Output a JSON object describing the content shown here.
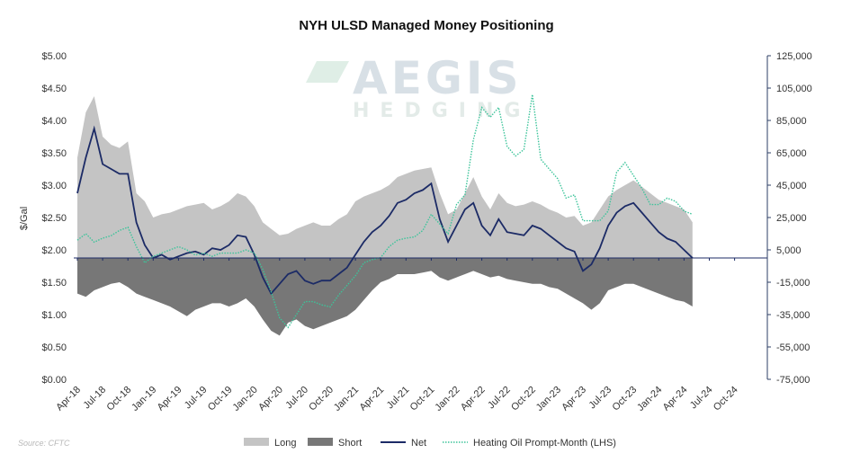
{
  "chart_data": {
    "type": "area",
    "title": "NYH ULSD Managed Money Positioning",
    "ylabel": "$/Gal",
    "source": "Source: CFTC",
    "watermark": {
      "line1": "AEGIS",
      "line2": "HEDGING"
    },
    "left_axis": {
      "ylim": [
        0,
        5
      ],
      "ticks": [
        "$5.00",
        "$4.50",
        "$4.00",
        "$3.50",
        "$3.00",
        "$2.50",
        "$2.00",
        "$1.50",
        "$1.00",
        "$0.50",
        "$0.00"
      ]
    },
    "right_axis": {
      "ylim": [
        -75000,
        125000
      ],
      "ticks": [
        "125,000",
        "105,000",
        "85,000",
        "65,000",
        "45,000",
        "25,000",
        "5,000",
        "-15,000",
        "-35,000",
        "-55,000",
        "-75,000"
      ]
    },
    "x_tick_labels": [
      "Apr-18",
      "Jul-18",
      "Oct-18",
      "Jan-19",
      "Apr-19",
      "Jul-19",
      "Oct-19",
      "Jan-20",
      "Apr-20",
      "Jul-20",
      "Oct-20",
      "Jan-21",
      "Apr-21",
      "Jul-21",
      "Oct-21",
      "Jan-22",
      "Apr-22",
      "Jul-22",
      "Oct-22",
      "Jan-23",
      "Apr-23",
      "Jul-23",
      "Oct-23",
      "Jan-24",
      "Apr-24",
      "Jul-24",
      "Oct-24"
    ],
    "grid": false,
    "legend_position": "bottom",
    "colors": {
      "long": "#c4c4c4",
      "short": "#777777",
      "net": "#1c2b66",
      "heating_oil": "#3cc49a",
      "zero_line": "#1c2b66",
      "right_axis_line": "#2e3f66"
    },
    "series": [
      {
        "name": "Long",
        "axis": "right",
        "style": "area",
        "x": [
          "Apr-18",
          "May-18",
          "Jun-18",
          "Jul-18",
          "Aug-18",
          "Sep-18",
          "Oct-18",
          "Nov-18",
          "Dec-18",
          "Jan-19",
          "Feb-19",
          "Mar-19",
          "Apr-19",
          "May-19",
          "Jun-19",
          "Jul-19",
          "Aug-19",
          "Sep-19",
          "Oct-19",
          "Nov-19",
          "Dec-19",
          "Jan-20",
          "Feb-20",
          "Mar-20",
          "Apr-20",
          "May-20",
          "Jun-20",
          "Jul-20",
          "Aug-20",
          "Sep-20",
          "Oct-20",
          "Nov-20",
          "Dec-20",
          "Jan-21",
          "Feb-21",
          "Mar-21",
          "Apr-21",
          "May-21",
          "Jun-21",
          "Jul-21",
          "Aug-21",
          "Sep-21",
          "Oct-21",
          "Nov-21",
          "Dec-21",
          "Jan-22",
          "Feb-22",
          "Mar-22",
          "Apr-22",
          "May-22",
          "Jun-22",
          "Jul-22",
          "Aug-22",
          "Sep-22",
          "Oct-22",
          "Nov-22",
          "Dec-22",
          "Jan-23",
          "Feb-23",
          "Mar-23",
          "Apr-23",
          "May-23",
          "Jun-23",
          "Jul-23",
          "Aug-23",
          "Sep-23",
          "Oct-23",
          "Nov-23",
          "Dec-23",
          "Jan-24",
          "Feb-24",
          "Mar-24",
          "Apr-24",
          "May-24"
        ],
        "values": [
          62000,
          90000,
          100000,
          75000,
          70000,
          68000,
          72000,
          40000,
          35000,
          25000,
          27000,
          28000,
          30000,
          32000,
          33000,
          34000,
          30000,
          32000,
          35000,
          40000,
          38000,
          32000,
          22000,
          18000,
          14000,
          15000,
          18000,
          20000,
          22000,
          20000,
          20000,
          24000,
          27000,
          35000,
          38000,
          40000,
          42000,
          45000,
          50000,
          52000,
          54000,
          55000,
          56000,
          40000,
          27000,
          30000,
          40000,
          50000,
          38000,
          30000,
          40000,
          34000,
          32000,
          33000,
          35000,
          33000,
          30000,
          28000,
          25000,
          26000,
          20000,
          22000,
          30000,
          38000,
          42000,
          45000,
          48000,
          44000,
          40000,
          36000,
          34000,
          32000,
          30000,
          22000
        ]
      },
      {
        "name": "Short",
        "axis": "right",
        "style": "area",
        "x": [
          "Apr-18",
          "May-18",
          "Jun-18",
          "Jul-18",
          "Aug-18",
          "Sep-18",
          "Oct-18",
          "Nov-18",
          "Dec-18",
          "Jan-19",
          "Feb-19",
          "Mar-19",
          "Apr-19",
          "May-19",
          "Jun-19",
          "Jul-19",
          "Aug-19",
          "Sep-19",
          "Oct-19",
          "Nov-19",
          "Dec-19",
          "Jan-20",
          "Feb-20",
          "Mar-20",
          "Apr-20",
          "May-20",
          "Jun-20",
          "Jul-20",
          "Aug-20",
          "Sep-20",
          "Oct-20",
          "Nov-20",
          "Dec-20",
          "Jan-21",
          "Feb-21",
          "Mar-21",
          "Apr-21",
          "May-21",
          "Jun-21",
          "Jul-21",
          "Aug-21",
          "Sep-21",
          "Oct-21",
          "Nov-21",
          "Dec-21",
          "Jan-22",
          "Feb-22",
          "Mar-22",
          "Apr-22",
          "May-22",
          "Jun-22",
          "Jul-22",
          "Aug-22",
          "Sep-22",
          "Oct-22",
          "Nov-22",
          "Dec-22",
          "Jan-23",
          "Feb-23",
          "Mar-23",
          "Apr-23",
          "May-23",
          "Jun-23",
          "Jul-23",
          "Aug-23",
          "Sep-23",
          "Oct-23",
          "Nov-23",
          "Dec-23",
          "Jan-24",
          "Feb-24",
          "Mar-24",
          "Apr-24",
          "May-24"
        ],
        "values": [
          -22000,
          -24000,
          -20000,
          -18000,
          -16000,
          -15000,
          -18000,
          -22000,
          -24000,
          -26000,
          -28000,
          -30000,
          -33000,
          -36000,
          -32000,
          -30000,
          -28000,
          -28000,
          -30000,
          -28000,
          -25000,
          -30000,
          -38000,
          -45000,
          -48000,
          -40000,
          -38000,
          -42000,
          -44000,
          -42000,
          -40000,
          -38000,
          -36000,
          -32000,
          -26000,
          -20000,
          -15000,
          -13000,
          -10000,
          -10000,
          -10000,
          -9000,
          -8000,
          -12000,
          -14000,
          -12000,
          -10000,
          -8000,
          -10000,
          -12000,
          -11000,
          -13000,
          -14000,
          -15000,
          -16000,
          -16000,
          -18000,
          -19000,
          -22000,
          -25000,
          -28000,
          -32000,
          -28000,
          -20000,
          -18000,
          -16000,
          -16000,
          -18000,
          -20000,
          -22000,
          -24000,
          -26000,
          -27000,
          -30000
        ]
      },
      {
        "name": "Net",
        "axis": "right",
        "style": "line",
        "x": [
          "Apr-18",
          "May-18",
          "Jun-18",
          "Jul-18",
          "Aug-18",
          "Sep-18",
          "Oct-18",
          "Nov-18",
          "Dec-18",
          "Jan-19",
          "Feb-19",
          "Mar-19",
          "Apr-19",
          "May-19",
          "Jun-19",
          "Jul-19",
          "Aug-19",
          "Sep-19",
          "Oct-19",
          "Nov-19",
          "Dec-19",
          "Jan-20",
          "Feb-20",
          "Mar-20",
          "Apr-20",
          "May-20",
          "Jun-20",
          "Jul-20",
          "Aug-20",
          "Sep-20",
          "Oct-20",
          "Nov-20",
          "Dec-20",
          "Jan-21",
          "Feb-21",
          "Mar-21",
          "Apr-21",
          "May-21",
          "Jun-21",
          "Jul-21",
          "Aug-21",
          "Sep-21",
          "Oct-21",
          "Nov-21",
          "Dec-21",
          "Jan-22",
          "Feb-22",
          "Mar-22",
          "Apr-22",
          "May-22",
          "Jun-22",
          "Jul-22",
          "Aug-22",
          "Sep-22",
          "Oct-22",
          "Nov-22",
          "Dec-22",
          "Jan-23",
          "Feb-23",
          "Mar-23",
          "Apr-23",
          "May-23",
          "Jun-23",
          "Jul-23",
          "Aug-23",
          "Sep-23",
          "Oct-23",
          "Nov-23",
          "Dec-23",
          "Jan-24",
          "Feb-24",
          "Mar-24",
          "Apr-24",
          "May-24"
        ],
        "values": [
          40000,
          62000,
          80000,
          58000,
          55000,
          52000,
          52000,
          22000,
          8000,
          0,
          2000,
          -1000,
          1000,
          3000,
          4000,
          2000,
          6000,
          5000,
          8000,
          14000,
          13000,
          2000,
          -12000,
          -22000,
          -16000,
          -10000,
          -8000,
          -14000,
          -16000,
          -14000,
          -14000,
          -10000,
          -6000,
          2000,
          10000,
          16000,
          20000,
          26000,
          34000,
          36000,
          40000,
          42000,
          46000,
          24000,
          10000,
          20000,
          30000,
          34000,
          20000,
          14000,
          24000,
          16000,
          15000,
          14000,
          20000,
          18000,
          14000,
          10000,
          6000,
          4000,
          -8000,
          -4000,
          6000,
          20000,
          28000,
          32000,
          34000,
          28000,
          22000,
          16000,
          12000,
          10000,
          5000,
          0
        ]
      },
      {
        "name": "Heating Oil Prompt-Month (LHS)",
        "axis": "left",
        "style": "dotted",
        "x": [
          "Apr-18",
          "May-18",
          "Jun-18",
          "Jul-18",
          "Aug-18",
          "Sep-18",
          "Oct-18",
          "Nov-18",
          "Dec-18",
          "Jan-19",
          "Feb-19",
          "Mar-19",
          "Apr-19",
          "May-19",
          "Jun-19",
          "Jul-19",
          "Aug-19",
          "Sep-19",
          "Oct-19",
          "Nov-19",
          "Dec-19",
          "Jan-20",
          "Feb-20",
          "Mar-20",
          "Apr-20",
          "May-20",
          "Jun-20",
          "Jul-20",
          "Aug-20",
          "Sep-20",
          "Oct-20",
          "Nov-20",
          "Dec-20",
          "Jan-21",
          "Feb-21",
          "Mar-21",
          "Apr-21",
          "May-21",
          "Jun-21",
          "Jul-21",
          "Aug-21",
          "Sep-21",
          "Oct-21",
          "Nov-21",
          "Dec-21",
          "Jan-22",
          "Feb-22",
          "Mar-22",
          "Apr-22",
          "May-22",
          "Jun-22",
          "Jul-22",
          "Aug-22",
          "Sep-22",
          "Oct-22",
          "Nov-22",
          "Dec-22",
          "Jan-23",
          "Feb-23",
          "Mar-23",
          "Apr-23",
          "May-23",
          "Jun-23",
          "Jul-23",
          "Aug-23",
          "Sep-23",
          "Oct-23",
          "Nov-23",
          "Dec-23",
          "Jan-24",
          "Feb-24",
          "Mar-24",
          "Apr-24",
          "May-24"
        ],
        "values": [
          2.15,
          2.25,
          2.12,
          2.18,
          2.22,
          2.3,
          2.35,
          2.05,
          1.8,
          1.9,
          1.95,
          2.0,
          2.05,
          2.0,
          1.92,
          1.95,
          1.9,
          1.95,
          1.95,
          1.95,
          2.0,
          1.95,
          1.7,
          1.35,
          0.95,
          0.8,
          1.0,
          1.2,
          1.2,
          1.15,
          1.12,
          1.3,
          1.45,
          1.6,
          1.8,
          1.85,
          1.88,
          2.05,
          2.15,
          2.18,
          2.2,
          2.3,
          2.55,
          2.4,
          2.25,
          2.7,
          2.85,
          3.7,
          4.2,
          4.05,
          4.2,
          3.6,
          3.45,
          3.55,
          4.4,
          3.4,
          3.25,
          3.1,
          2.8,
          2.85,
          2.45,
          2.45,
          2.45,
          2.6,
          3.2,
          3.35,
          3.15,
          2.95,
          2.7,
          2.7,
          2.8,
          2.75,
          2.6,
          2.55
        ]
      }
    ]
  }
}
